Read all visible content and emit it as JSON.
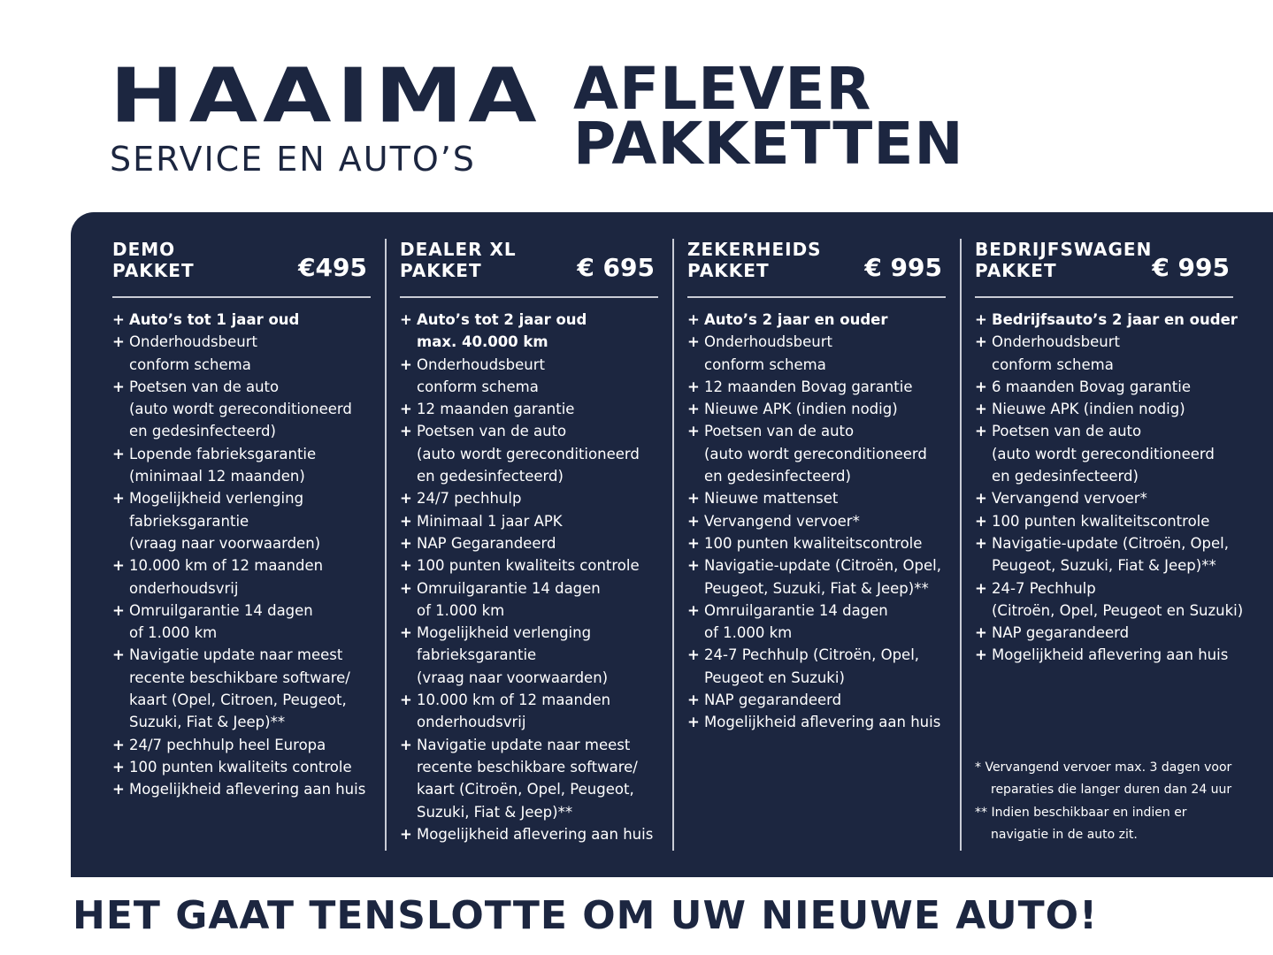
{
  "logo": {
    "brand": "HAAIMA",
    "sub": "SERVICE EN AUTO’S"
  },
  "headline": {
    "line1": "AFLEVER",
    "line2": "PAKKETTEN"
  },
  "colors": {
    "navy": "#1c2640",
    "white": "#ffffff"
  },
  "packages": [
    {
      "title1": "DEMO",
      "title2": "PAKKET",
      "price": "€495",
      "items": [
        {
          "bold": true,
          "lines": [
            "Auto’s tot 1 jaar oud"
          ]
        },
        {
          "lines": [
            "Onderhoudsbeurt",
            "conform schema"
          ]
        },
        {
          "lines": [
            "Poetsen van de auto",
            "(auto wordt gereconditioneerd",
            "en gedesinfecteerd)"
          ]
        },
        {
          "lines": [
            "Lopende fabrieksgarantie",
            "(minimaal 12 maanden)"
          ]
        },
        {
          "lines": [
            "Mogelijkheid verlenging",
            "fabrieksgarantie",
            "(vraag naar voorwaarden)"
          ]
        },
        {
          "lines": [
            "10.000 km of 12 maanden",
            "onderhoudsvrij"
          ]
        },
        {
          "lines": [
            "Omruilgarantie 14 dagen",
            "of 1.000 km"
          ]
        },
        {
          "lines": [
            "Navigatie update naar meest",
            "recente beschikbare software/",
            "kaart (Opel, Citroen,  Peugeot,",
            "Suzuki, Fiat & Jeep)**"
          ]
        },
        {
          "lines": [
            "24/7 pechhulp heel Europa"
          ]
        },
        {
          "lines": [
            "100 punten kwaliteits controle"
          ]
        },
        {
          "lines": [
            "Mogelijkheid aflevering aan huis"
          ]
        }
      ]
    },
    {
      "title1": "DEALER XL",
      "title2": "PAKKET",
      "price": "€ 695",
      "items": [
        {
          "bold": true,
          "lines": [
            "Auto’s tot 2 jaar oud",
            "max. 40.000 km"
          ]
        },
        {
          "lines": [
            "Onderhoudsbeurt",
            "conform schema"
          ]
        },
        {
          "lines": [
            "12 maanden garantie"
          ]
        },
        {
          "lines": [
            "Poetsen van de auto",
            "(auto wordt gereconditioneerd",
            "en gedesinfecteerd)"
          ]
        },
        {
          "lines": [
            "24/7 pechhulp"
          ]
        },
        {
          "lines": [
            "Minimaal 1 jaar APK"
          ]
        },
        {
          "lines": [
            "NAP Gegarandeerd"
          ]
        },
        {
          "lines": [
            "100 punten kwaliteits controle"
          ]
        },
        {
          "lines": [
            "Omruilgarantie 14 dagen",
            "of 1.000 km"
          ]
        },
        {
          "lines": [
            "Mogelijkheid verlenging",
            "fabrieksgarantie",
            "(vraag naar voorwaarden)"
          ]
        },
        {
          "lines": [
            "10.000 km of 12 maanden",
            "onderhoudsvrij"
          ]
        },
        {
          "lines": [
            "Navigatie update naar meest",
            "recente beschikbare software/",
            "kaart (Citroën, Opel, Peugeot,",
            "Suzuki, Fiat & Jeep)**"
          ]
        },
        {
          "lines": [
            "Mogelijkheid aflevering aan huis"
          ]
        }
      ]
    },
    {
      "title1": "ZEKERHEIDS",
      "title2": "PAKKET",
      "price": "€ 995",
      "items": [
        {
          "bold": true,
          "lines": [
            "Auto’s 2 jaar en ouder"
          ]
        },
        {
          "lines": [
            "Onderhoudsbeurt",
            "conform schema"
          ]
        },
        {
          "lines": [
            "12 maanden Bovag garantie"
          ]
        },
        {
          "lines": [
            "Nieuwe APK (indien nodig)"
          ]
        },
        {
          "lines": [
            "Poetsen van de auto",
            "(auto wordt gereconditioneerd",
            "en gedesinfecteerd)"
          ]
        },
        {
          "lines": [
            "Nieuwe mattenset"
          ]
        },
        {
          "lines": [
            "Vervangend vervoer*"
          ]
        },
        {
          "lines": [
            "100 punten kwaliteitscontrole"
          ]
        },
        {
          "lines": [
            "Navigatie-update (Citroën, Opel,",
            "Peugeot, Suzuki, Fiat & Jeep)**"
          ]
        },
        {
          "lines": [
            "Omruilgarantie 14 dagen",
            "of 1.000 km"
          ]
        },
        {
          "lines": [
            "24-7 Pechhulp (Citroën, Opel,",
            "Peugeot en Suzuki)"
          ]
        },
        {
          "lines": [
            "NAP gegarandeerd"
          ]
        },
        {
          "lines": [
            "Mogelijkheid aflevering aan huis"
          ]
        }
      ]
    },
    {
      "title1": "BEDRIJFSWAGEN",
      "title2": "PAKKET",
      "price": "€ 995",
      "items": [
        {
          "bold": true,
          "lines": [
            "Bedrijfsauto’s 2 jaar en ouder"
          ]
        },
        {
          "lines": [
            "Onderhoudsbeurt",
            "conform schema"
          ]
        },
        {
          "lines": [
            "6 maanden Bovag garantie"
          ]
        },
        {
          "lines": [
            "Nieuwe APK (indien nodig)"
          ]
        },
        {
          "lines": [
            "Poetsen van de auto",
            "(auto wordt gereconditioneerd",
            "en gedesinfecteerd)"
          ]
        },
        {
          "lines": [
            "Vervangend vervoer*"
          ]
        },
        {
          "lines": [
            "100 punten kwaliteitscontrole"
          ]
        },
        {
          "lines": [
            "Navigatie-update (Citroën, Opel,",
            "Peugeot, Suzuki, Fiat & Jeep)**"
          ]
        },
        {
          "lines": [
            "24-7 Pechhulp",
            "(Citroën, Opel, Peugeot en Suzuki)"
          ]
        },
        {
          "lines": [
            "NAP gegarandeerd"
          ]
        },
        {
          "lines": [
            "Mogelijkheid aflevering aan huis"
          ]
        }
      ]
    }
  ],
  "notes": {
    "note1a": "* Vervangend vervoer max. 3 dagen voor",
    "note1b": "reparaties die langer duren dan 24 uur",
    "note2a": "** Indien beschikbaar en indien er",
    "note2b": "navigatie in de auto zit."
  },
  "footer": "HET GAAT TENSLOTTE OM UW NIEUWE AUTO!"
}
